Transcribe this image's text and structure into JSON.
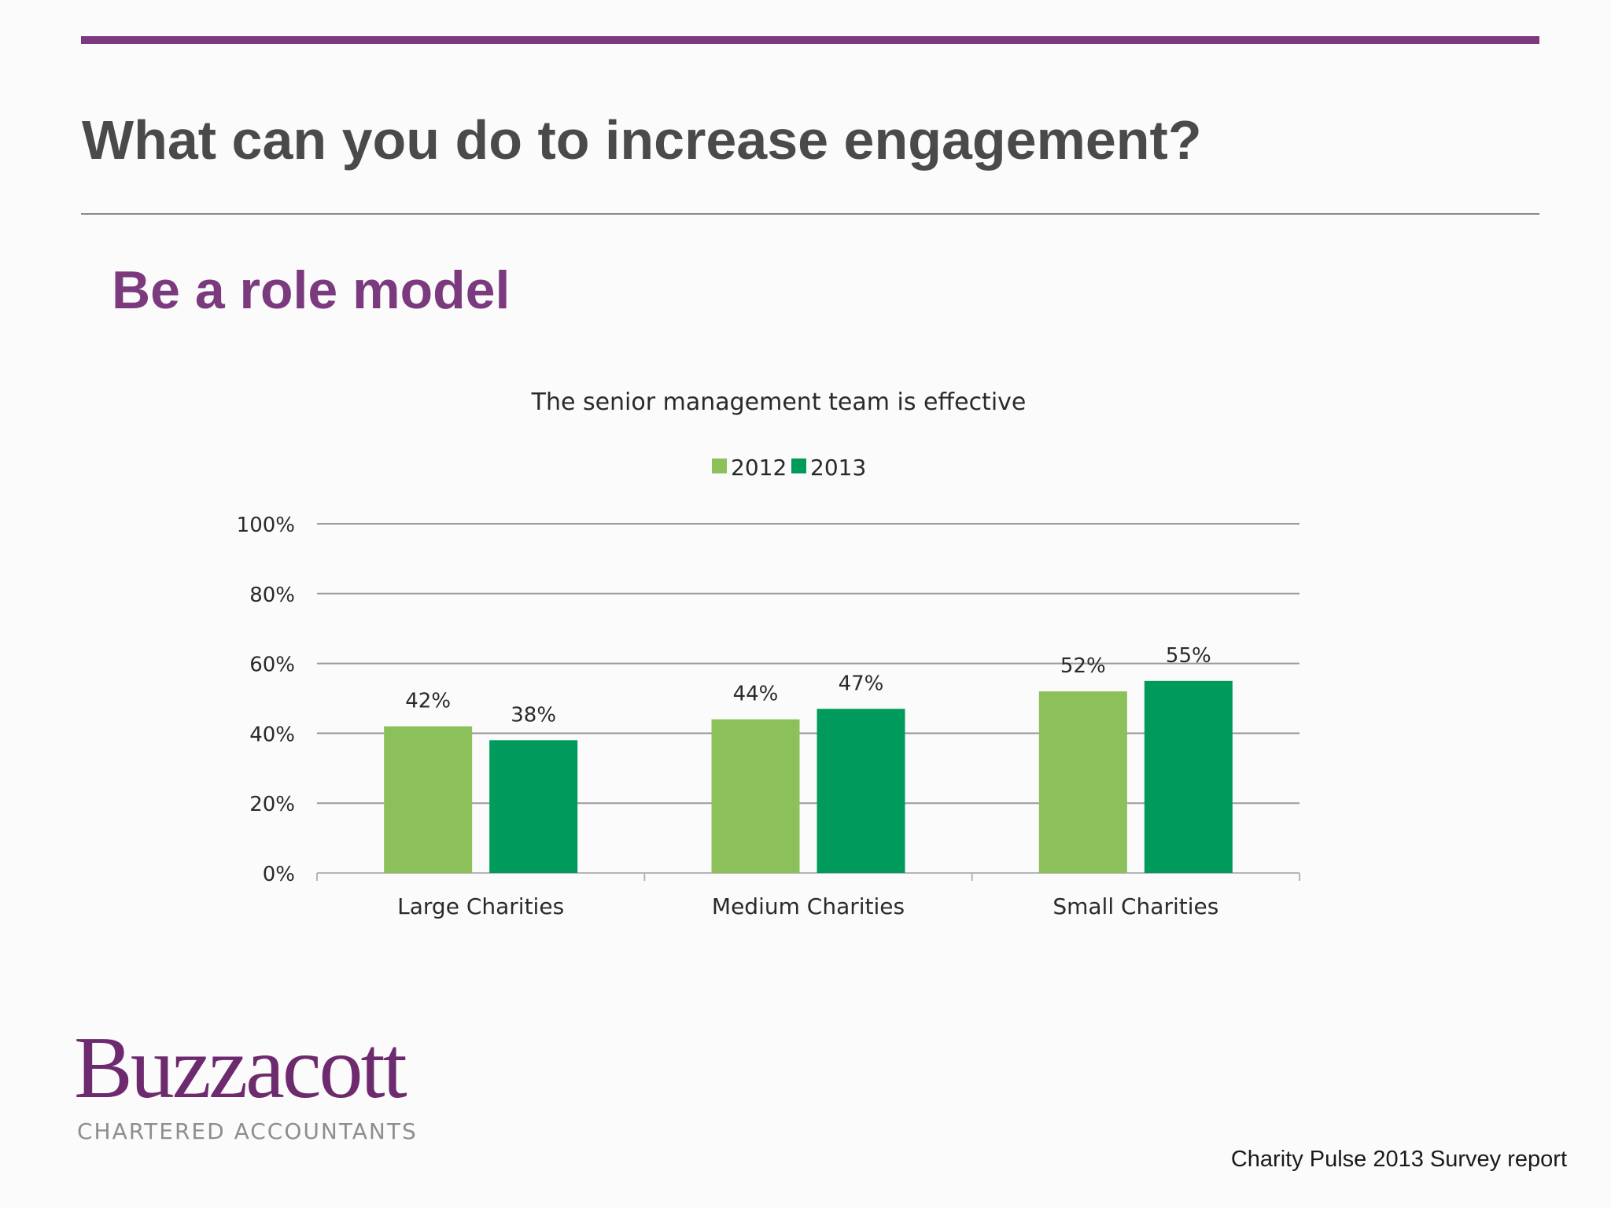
{
  "slide": {
    "title": "What can you do to increase engagement?",
    "subtitle": "Be a role model",
    "accent_color": "#7b3a7d"
  },
  "chart_data": {
    "type": "bar",
    "title": "The senior management team is effective",
    "categories": [
      "Large Charities",
      "Medium Charities",
      "Small Charities"
    ],
    "series": [
      {
        "name": "2012",
        "values": [
          42,
          44,
          52
        ],
        "labels": [
          "42%",
          "44%",
          "52%"
        ],
        "color": "#8cc05a"
      },
      {
        "name": "2013",
        "values": [
          38,
          47,
          55
        ],
        "labels": [
          "38%",
          "47%",
          "55%"
        ],
        "color": "#009a5c"
      }
    ],
    "ylim": [
      0,
      100
    ],
    "yticks": [
      "0%",
      "20%",
      "40%",
      "60%",
      "80%",
      "100%"
    ],
    "grid": true,
    "legend_position": "top-center"
  },
  "footer": {
    "logo_name": "Buzzacott",
    "logo_tagline": "CHARTERED ACCOUNTANTS",
    "source": "Charity Pulse 2013 Survey report"
  }
}
